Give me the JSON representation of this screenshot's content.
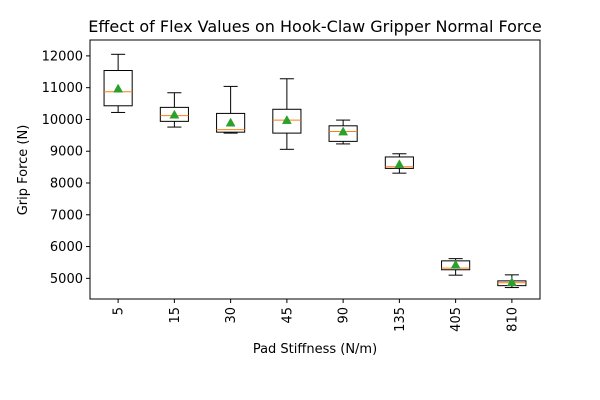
{
  "chart_data": {
    "type": "boxplot",
    "title": "Effect of Flex Values on Hook-Claw Gripper Normal Force",
    "xlabel": "Pad Stiffness (N/m)",
    "ylabel": "Grip Force (N)",
    "categories": [
      "5",
      "15",
      "30",
      "45",
      "90",
      "135",
      "405",
      "810"
    ],
    "ylim": [
      4350,
      12500
    ],
    "yticks": [
      5000,
      6000,
      7000,
      8000,
      9000,
      10000,
      11000,
      12000
    ],
    "grid": false,
    "boxes": [
      {
        "whisker_low": 10220,
        "q1": 10430,
        "median": 10870,
        "q3": 11540,
        "whisker_high": 12050,
        "mean": 10970
      },
      {
        "whisker_low": 9760,
        "q1": 9940,
        "median": 10120,
        "q3": 10380,
        "whisker_high": 10840,
        "mean": 10150
      },
      {
        "whisker_low": 9570,
        "q1": 9600,
        "median": 9680,
        "q3": 10190,
        "whisker_high": 11040,
        "mean": 9900
      },
      {
        "whisker_low": 9060,
        "q1": 9570,
        "median": 9980,
        "q3": 10320,
        "whisker_high": 11280,
        "mean": 9980
      },
      {
        "whisker_low": 9230,
        "q1": 9310,
        "median": 9620,
        "q3": 9800,
        "whisker_high": 9980,
        "mean": 9620
      },
      {
        "whisker_low": 8310,
        "q1": 8460,
        "median": 8510,
        "q3": 8820,
        "whisker_high": 8920,
        "mean": 8590
      },
      {
        "whisker_low": 5100,
        "q1": 5270,
        "median": 5320,
        "q3": 5550,
        "whisker_high": 5620,
        "mean": 5430
      },
      {
        "whisker_low": 4710,
        "q1": 4770,
        "median": 4860,
        "q3": 4920,
        "whisker_high": 5110,
        "mean": 4880
      }
    ],
    "colors": {
      "box": "#000000",
      "median": "#ff7f0e",
      "mean_marker": "#2ca02c"
    },
    "mean_marker_shape": "triangle-up"
  }
}
